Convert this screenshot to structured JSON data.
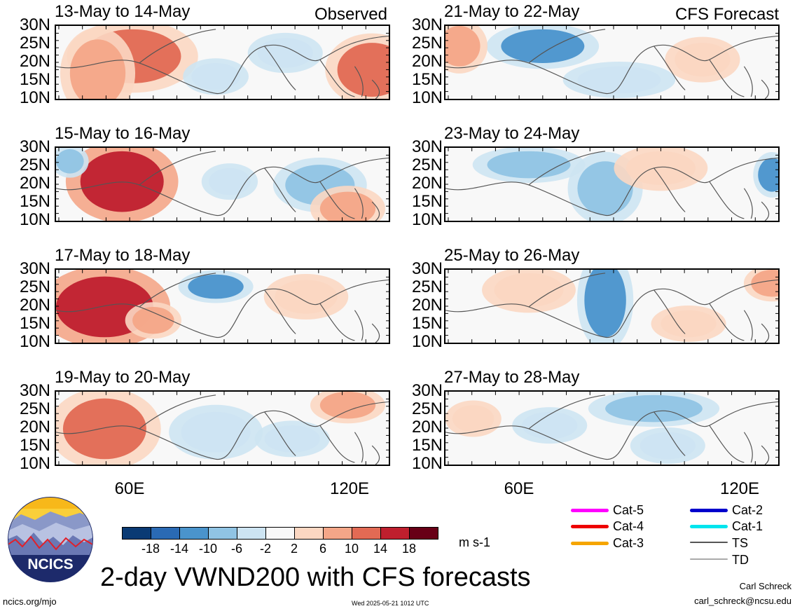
{
  "panels": {
    "left": [
      {
        "title": "13-May to 14-May",
        "source": "Observed"
      },
      {
        "title": "15-May to 16-May",
        "source": ""
      },
      {
        "title": "17-May to 18-May",
        "source": ""
      },
      {
        "title": "19-May to 20-May",
        "source": ""
      }
    ],
    "right": [
      {
        "title": "21-May to 22-May",
        "source": "CFS Forecast"
      },
      {
        "title": "23-May to 24-May",
        "source": ""
      },
      {
        "title": "25-May to 26-May",
        "source": ""
      },
      {
        "title": "27-May to 28-May",
        "source": ""
      }
    ]
  },
  "axes": {
    "lat_ticks": [
      "30N",
      "25N",
      "20N",
      "15N",
      "10N"
    ],
    "lon_ticks": [
      "60E",
      "120E"
    ]
  },
  "colorbar": {
    "colors": [
      "#0a3a74",
      "#2a6ab4",
      "#4a94cc",
      "#90c4e4",
      "#cde4f2",
      "#f8f8f8",
      "#fbd7c2",
      "#f4a688",
      "#e26a54",
      "#bf1f2e",
      "#680016"
    ],
    "labels": [
      "-18",
      "-14",
      "-10",
      "-6",
      "-2",
      "2",
      "6",
      "10",
      "14",
      "18"
    ],
    "units": "m s-1"
  },
  "storm_legend": [
    {
      "label": "Cat-5",
      "color": "#ff00ff"
    },
    {
      "label": "Cat-4",
      "color": "#ee0000"
    },
    {
      "label": "Cat-3",
      "color": "#f5a500"
    },
    {
      "label": "Cat-2",
      "color": "#0000cc"
    },
    {
      "label": "Cat-1",
      "color": "#00e5ee"
    },
    {
      "label": "TS",
      "color": "#555555"
    },
    {
      "label": "TD",
      "color": "#aaaaaa"
    }
  ],
  "logo": {
    "text": "NCICS"
  },
  "main_title": "2-day VWND200 with CFS forecasts",
  "footer": {
    "url": "ncics.org/mjo",
    "timestamp": "Wed 2025-05-21 1012 UTC",
    "author": "Carl Schreck",
    "email": "carl_schreck@ncsu.edu"
  }
}
